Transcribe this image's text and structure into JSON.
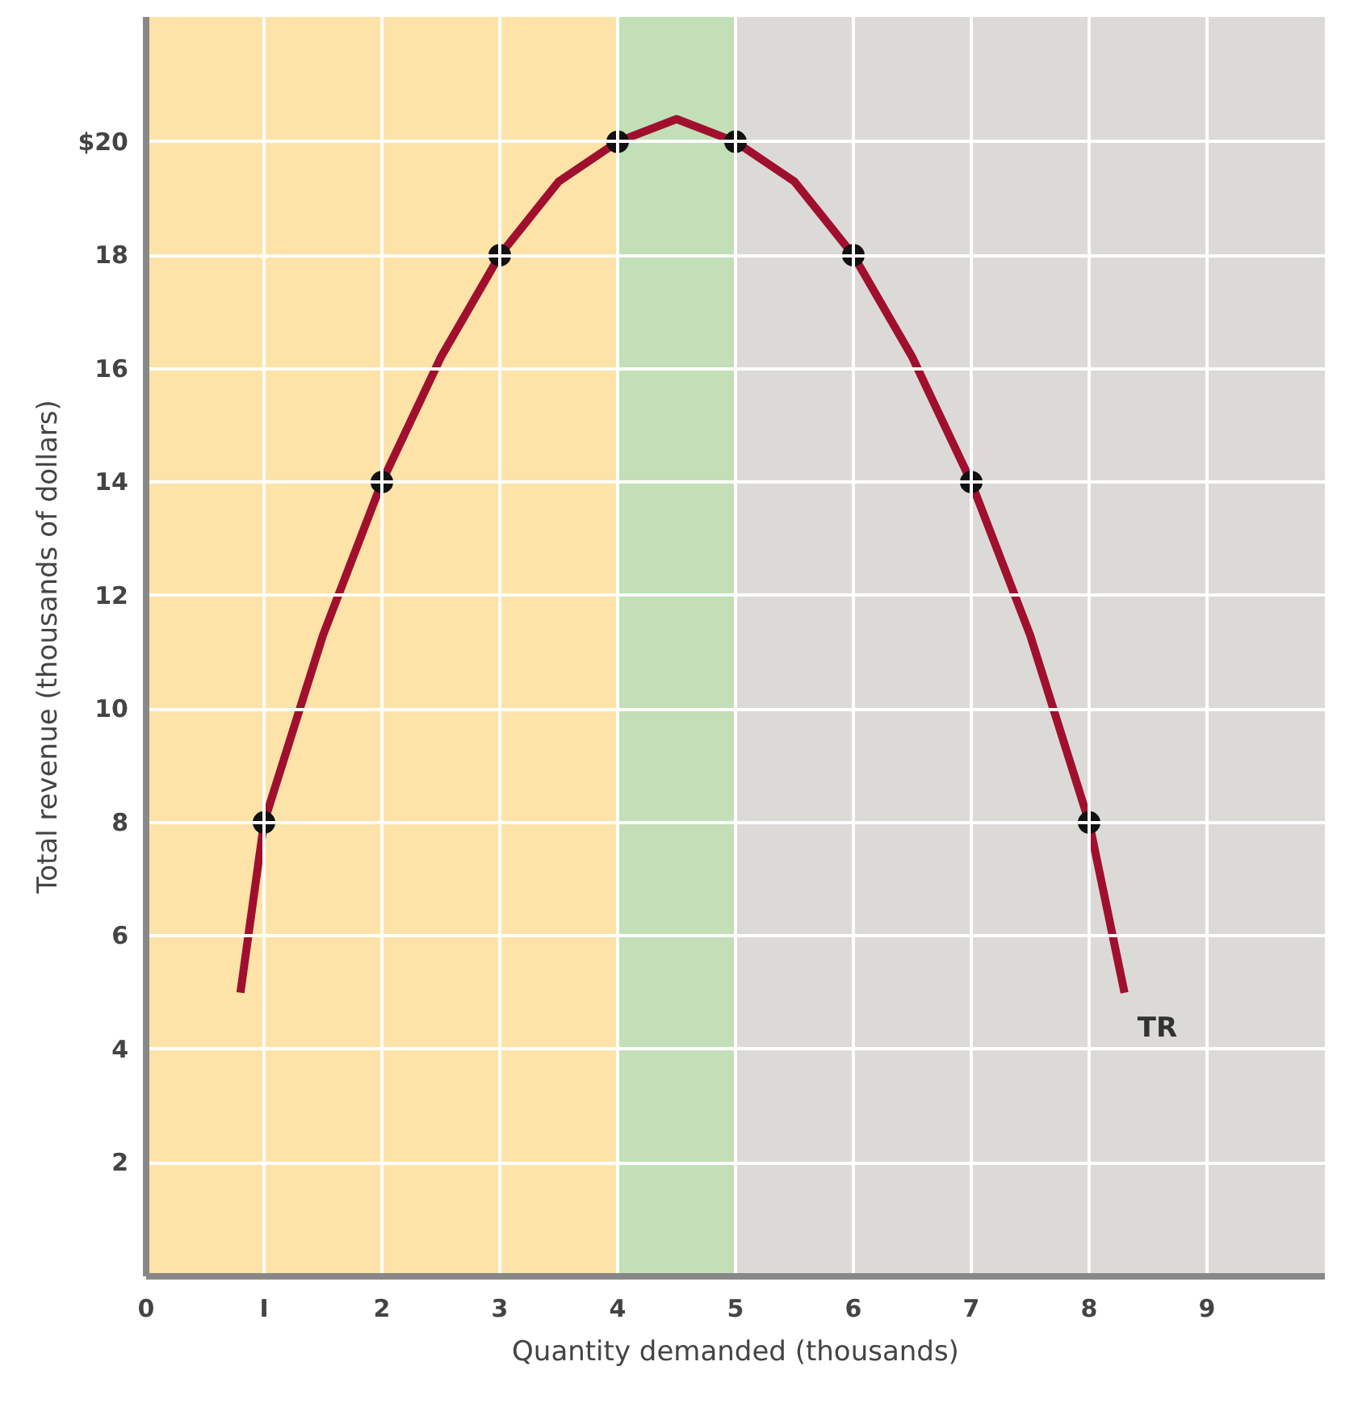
{
  "chart_data": {
    "type": "line",
    "xlabel": "Quantity demanded (thousands)",
    "ylabel": "Total revenue (thousands of dollars)",
    "xlim": [
      0,
      10
    ],
    "ylim": [
      0,
      22.2
    ],
    "xticks": [
      0,
      {
        "value": 1,
        "label": "I"
      },
      2,
      3,
      4,
      5,
      6,
      7,
      8,
      9
    ],
    "yticks": [
      2,
      4,
      6,
      8,
      10,
      12,
      14,
      16,
      18,
      {
        "value": 20,
        "label": "$20"
      }
    ],
    "grid": true,
    "line_style": "solid",
    "bands": [
      {
        "axis": "x",
        "from": 0,
        "to": 4,
        "color": "#fde3a7"
      },
      {
        "axis": "x",
        "from": 4,
        "to": 5,
        "color": "#c2dfb8"
      },
      {
        "axis": "x",
        "from": 5,
        "to": 10,
        "color": "#dcdad6"
      }
    ],
    "series": [
      {
        "name": "TR",
        "color": "#a0102e",
        "marker": "none",
        "x": [
          0.8,
          1,
          1.5,
          2,
          2.5,
          3,
          3.5,
          4,
          4.5,
          5,
          5.5,
          6,
          6.5,
          7,
          7.5,
          8,
          8.3
        ],
        "values": [
          5,
          8,
          11.3,
          14,
          16.2,
          18,
          19.3,
          20,
          20.4,
          20,
          19.3,
          18,
          16.2,
          14,
          11.3,
          8,
          5
        ]
      },
      {
        "type": "scatter",
        "color": "#111111",
        "marker": "circle",
        "x": [
          1,
          2,
          3,
          4,
          5,
          6,
          7,
          8
        ],
        "values": [
          8,
          14,
          18,
          20,
          20,
          18,
          14,
          8
        ]
      }
    ]
  }
}
